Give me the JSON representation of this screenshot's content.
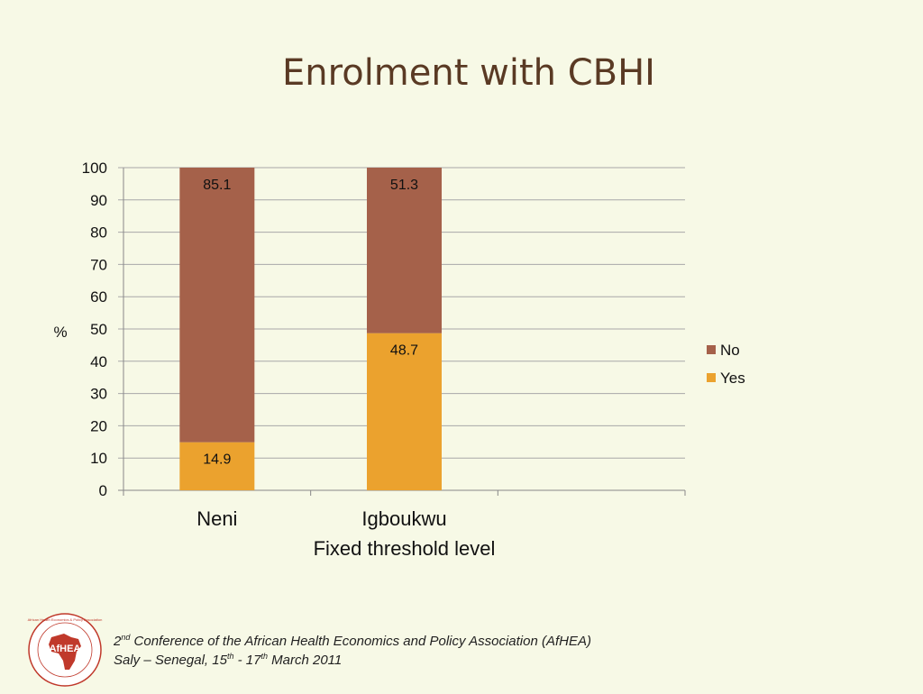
{
  "slide": {
    "title": "Enrolment with CBHI"
  },
  "chart_data": {
    "type": "bar",
    "stacked": true,
    "categories": [
      "Neni",
      "Igboukwu"
    ],
    "series": [
      {
        "name": "Yes",
        "values": [
          14.9,
          48.7
        ],
        "color": "#eba22e"
      },
      {
        "name": "No",
        "values": [
          85.1,
          51.3
        ],
        "color": "#a5614a"
      }
    ],
    "data_labels": {
      "Yes": [
        "14.9",
        "48.7"
      ],
      "No": [
        "85.1",
        "51.3"
      ]
    },
    "title": "",
    "xlabel": "Fixed threshold level",
    "ylabel": "%",
    "ylim": [
      0,
      100
    ],
    "yticks": [
      "0",
      "10",
      "20",
      "30",
      "40",
      "50",
      "60",
      "70",
      "80",
      "90",
      "100"
    ],
    "grid": true,
    "legend": {
      "placement": "right",
      "entries": [
        "No",
        "Yes"
      ]
    }
  },
  "footer": {
    "line1_ordinal": "2",
    "line1_sup": "nd",
    "line1_text": " Conference of the African Health Economics and Policy Association (AfHEA)",
    "line2_prefix": "Saly – Senegal, 15",
    "line2_sup1": "th",
    "line2_mid": " - 17",
    "line2_sup2": "th",
    "line2_suffix": " March 2011",
    "logo_text": "AfHEA",
    "logo_ring_text": "African Health Economics & Policy Association"
  },
  "colors": {
    "background": "#f7f9e6",
    "title": "#5a3a24",
    "logo": "#c0392b",
    "yes": "#eba22e",
    "no": "#a5614a"
  }
}
